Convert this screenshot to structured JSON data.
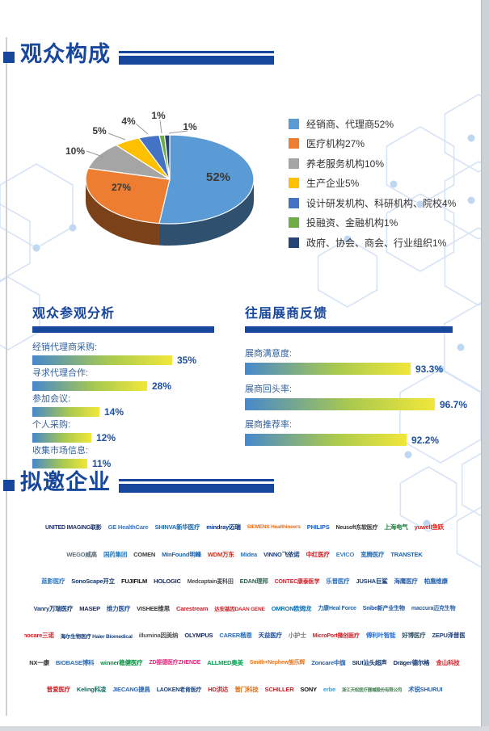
{
  "sections": {
    "audience": {
      "title": "观众构成"
    },
    "visitor": {
      "title": "观众参观分析"
    },
    "feedback": {
      "title": "往届展商反馈"
    },
    "invited": {
      "title": "拟邀企业"
    }
  },
  "chart_data": [
    {
      "type": "pie",
      "style": "3d-pie",
      "title": "观众构成",
      "labels": [
        "经销商、代理商",
        "医疗机构",
        "养老服务机构",
        "生产企业",
        "设计研发机构、科研机构、院校",
        "投融资、金融机构",
        "政府、协会、商会、行业组织"
      ],
      "values": [
        52,
        27,
        10,
        5,
        4,
        1,
        1
      ],
      "unit": "%",
      "colors": [
        "#5B9BD5",
        "#ED7D31",
        "#A5A5A5",
        "#FFC000",
        "#4472C4",
        "#70AD47",
        "#264478"
      ],
      "legend": [
        "经销商、代理商52%",
        "医疗机构27%",
        "养老服务机构10%",
        "生产企业5%",
        "设计研发机构、科研机构、院校4%",
        "投融资、金融机构1%",
        "政府、协会、商会、行业组织1%"
      ],
      "legend_position": "right"
    },
    {
      "type": "bar",
      "orientation": "horizontal",
      "title": "观众参观分析",
      "categories": [
        "经销代理商采购:",
        "寻求代理合作:",
        "参加会议:",
        "个人采购:",
        "收集市场信息:"
      ],
      "values": [
        35,
        28,
        14,
        12,
        11
      ],
      "value_labels": [
        "35%",
        "28%",
        "14%",
        "12%",
        "11%"
      ],
      "xlim": [
        0,
        100
      ]
    },
    {
      "type": "bar",
      "orientation": "horizontal",
      "title": "往届展商反馈",
      "categories": [
        "展商满意度:",
        "展商回头率:",
        "展商推荐率:"
      ],
      "values": [
        93.3,
        96.7,
        92.2
      ],
      "value_labels": [
        "93.3%",
        "96.7%",
        "92.2%"
      ],
      "xlim": [
        0,
        100
      ]
    }
  ],
  "pie_value_labels": [
    "52%",
    "27%",
    "10%",
    "5%",
    "4%",
    "1%",
    "1%"
  ],
  "colors": {
    "accent": "#17479D",
    "bar_gradient": [
      "#4788CC",
      "#A9C94F",
      "#F1E73A"
    ],
    "legend_text": "#333333",
    "label_blue": "#33619F",
    "value_blue": "#1D4FA0"
  },
  "logos": {
    "rows": [
      [
        {
          "t": "UNITED IMAGING联影",
          "c": "#1B2F6E",
          "s": 7
        },
        {
          "t": "GE HealthCare",
          "c": "#3B73B9"
        },
        {
          "t": "SHINVA新华医疗",
          "c": "#1766B1"
        },
        {
          "t": "mindray迈瑞",
          "c": "#002F87"
        },
        {
          "t": "SIEMENS Healthineers",
          "c": "#E36F1E",
          "s": 6.5
        },
        {
          "t": "PHILIPS",
          "c": "#0B5ED7"
        },
        {
          "t": "Neusoft东软医疗",
          "c": "#333333",
          "s": 7
        },
        {
          "t": "上海电气",
          "c": "#1A7F3C"
        },
        {
          "t": "yuwell鱼跃",
          "c": "#E02418"
        }
      ],
      [
        {
          "t": "WEGO威高",
          "c": "#5A6B77"
        },
        {
          "t": "国药集团",
          "c": "#2E7FBF"
        },
        {
          "t": "COMEN",
          "c": "#3A3A3A"
        },
        {
          "t": "MinFound明峰",
          "c": "#1E63B0"
        },
        {
          "t": "WDM万东",
          "c": "#D42B1E"
        },
        {
          "t": "Midea",
          "c": "#2473BE"
        },
        {
          "t": "VINNO飞依诺",
          "c": "#123E7C"
        },
        {
          "t": "中红医疗",
          "c": "#C9242B"
        },
        {
          "t": "EVICO",
          "c": "#3F7FC0"
        },
        {
          "t": "宽腾医疗",
          "c": "#2C6FB7"
        },
        {
          "t": "TRANSTEK",
          "c": "#1F5FAF"
        }
      ],
      [
        {
          "t": "蓝影医疗",
          "c": "#2E78C0"
        },
        {
          "t": "SonoScape开立",
          "c": "#12366B"
        },
        {
          "t": "FUJIFILM",
          "c": "#111111"
        },
        {
          "t": "HOLOGIC",
          "c": "#1B2A5E"
        },
        {
          "t": "Medcaptain麦科田",
          "c": "#4A4F55",
          "s": 7
        },
        {
          "t": "EDAN理邦",
          "c": "#2F5F4F"
        },
        {
          "t": "CONTEC康泰医学",
          "c": "#D01F26",
          "s": 7
        },
        {
          "t": "乐普医疗",
          "c": "#2E6FB8"
        },
        {
          "t": "JUSHA巨鲨",
          "c": "#123E7C"
        },
        {
          "t": "海鹰医疗",
          "c": "#2B63AE"
        },
        {
          "t": "柏惠维康",
          "c": "#1F5FAF"
        }
      ],
      [
        {
          "t": "Vanry万瑞医疗",
          "c": "#16407E"
        },
        {
          "t": "MASEP",
          "c": "#1B2A5E"
        },
        {
          "t": "维力医疗",
          "c": "#1E4F9C"
        },
        {
          "t": "VISHEE维思",
          "c": "#333333"
        },
        {
          "t": "Carestream",
          "c": "#D0202A"
        },
        {
          "t": "达安基因DAAN GENE",
          "c": "#C8262C",
          "s": 6.5
        },
        {
          "t": "OMRON欧姆龙",
          "c": "#0A6EB4"
        },
        {
          "t": "力康Heal Force",
          "c": "#1E66A8",
          "s": 7
        },
        {
          "t": "Snibe新产业生物",
          "c": "#1B4F9C",
          "s": 7
        },
        {
          "t": "maccura迈克生物",
          "c": "#2D5FA8",
          "s": 7
        }
      ],
      [
        {
          "t": "Sinocare三诺",
          "c": "#D01F26"
        },
        {
          "t": "海尔生物医疗 Haier Biomedical",
          "c": "#16407E",
          "s": 6.5
        },
        {
          "t": "illumina因美纳",
          "c": "#555555"
        },
        {
          "t": "OLYMPUS",
          "c": "#152C6E"
        },
        {
          "t": "CARER楷恩",
          "c": "#2E6FB8"
        },
        {
          "t": "天益医疗",
          "c": "#1B4A9C"
        },
        {
          "t": "小护士",
          "c": "#777777"
        },
        {
          "t": "MicroPort微创医疗",
          "c": "#CE2127",
          "s": 7
        },
        {
          "t": "傅利叶智能",
          "c": "#2D6FD0"
        },
        {
          "t": "好博医疗",
          "c": "#335566"
        },
        {
          "t": "ZEPU泽普医疗",
          "c": "#1B3F7E"
        }
      ],
      [
        {
          "t": "NX一康",
          "c": "#333333"
        },
        {
          "t": "BIOBASE博科",
          "c": "#2E6FB8"
        },
        {
          "t": "winner稳健医疗",
          "c": "#00923F"
        },
        {
          "t": "ZD振德医疗ZHENDE",
          "c": "#E0287E",
          "s": 7
        },
        {
          "t": "ALLMED奥美",
          "c": "#00A551"
        },
        {
          "t": "Smith+Nephew施乐辉",
          "c": "#E87722",
          "s": 7
        },
        {
          "t": "Zoncare中旗",
          "c": "#2B63AE"
        },
        {
          "t": "SIUI汕头超声",
          "c": "#12366B"
        },
        {
          "t": "Dräger德尔格",
          "c": "#0A2D6E"
        },
        {
          "t": "金山科技",
          "c": "#D01F26"
        }
      ],
      [
        {
          "t": "普爱医疗",
          "c": "#D01F26"
        },
        {
          "t": "Keling科凌",
          "c": "#156E62"
        },
        {
          "t": "JIECANG捷昌",
          "c": "#2B63AE"
        },
        {
          "t": "LAOKEN老肯医疗",
          "c": "#16407E",
          "s": 7
        },
        {
          "t": "HD洪达",
          "c": "#C9242B"
        },
        {
          "t": "普门科技",
          "c": "#E06A10"
        },
        {
          "t": "SCHILLER",
          "c": "#D01F26"
        },
        {
          "t": "SONY",
          "c": "#111111"
        },
        {
          "t": "erbe",
          "c": "#33A3DC"
        },
        {
          "t": "浙江天松医疗器械股份有限公司",
          "c": "#3A7F4A",
          "s": 5.5
        },
        {
          "t": "术锐SHURUI",
          "c": "#2B63AE"
        }
      ]
    ]
  }
}
